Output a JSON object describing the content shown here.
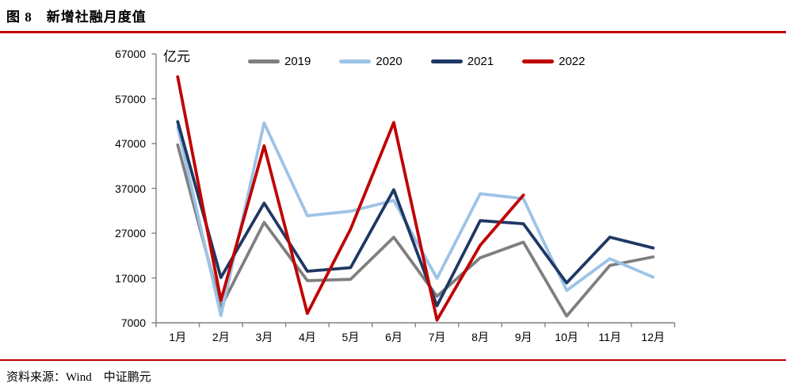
{
  "page": {
    "title": "图 8　新增社融月度值",
    "source": "资料来源：Wind　中证鹏元"
  },
  "chart_data": {
    "type": "line",
    "title": "新增社融月度值",
    "ylabel": "亿元",
    "xlabel": "",
    "categories": [
      "1月",
      "2月",
      "3月",
      "4月",
      "5月",
      "6月",
      "7月",
      "8月",
      "9月",
      "10月",
      "11月",
      "12月"
    ],
    "series": [
      {
        "name": "2019",
        "color": "#7f7f7f",
        "values": [
          46700,
          10500,
          29400,
          16400,
          16700,
          26100,
          12900,
          21500,
          25000,
          8500,
          19800,
          21700
        ]
      },
      {
        "name": "2020",
        "color": "#9dc3e6",
        "values": [
          50700,
          8600,
          51600,
          30900,
          31900,
          34300,
          16900,
          35800,
          34700,
          14200,
          21300,
          17200
        ]
      },
      {
        "name": "2021",
        "color": "#1f3864",
        "values": [
          51900,
          17100,
          33700,
          18500,
          19300,
          36700,
          10800,
          29800,
          29100,
          15900,
          26100,
          23700
        ]
      },
      {
        "name": "2022",
        "color": "#c00000",
        "values": [
          61900,
          12000,
          46500,
          9100,
          27900,
          51700,
          7600,
          24300,
          35500,
          null,
          null,
          null
        ]
      }
    ],
    "ylim": [
      7000,
      67000
    ],
    "yticks": [
      7000,
      17000,
      27000,
      37000,
      47000,
      57000,
      67000
    ],
    "legend_position": "top",
    "grid": false,
    "axis_color": "#808080",
    "accent_color": "#c00000"
  }
}
